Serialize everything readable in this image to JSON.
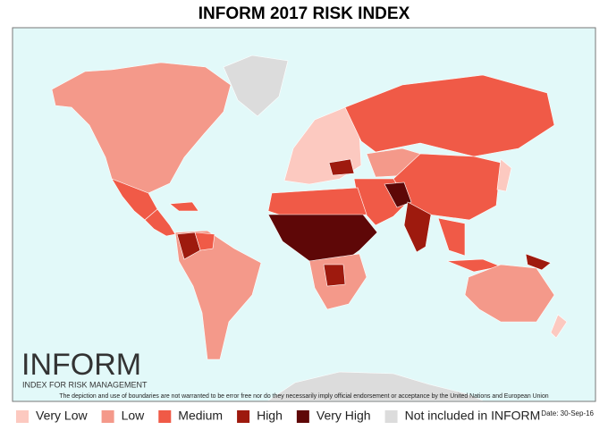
{
  "header": {
    "title": "INFORM 2017 RISK INDEX"
  },
  "logo": {
    "name": "INFORM",
    "subtitle": "INDEX FOR RISK MANAGEMENT"
  },
  "disclaimer": "The depiction and use of boundaries are not warranted to be error free nor do they necessarily imply official endorsement or acceptance by the United Nations and European Union",
  "date": "Date: 30-Sep-16",
  "legend": [
    {
      "label": "Very Low",
      "color": "#fcc9c0"
    },
    {
      "label": "Low",
      "color": "#f4998a"
    },
    {
      "label": "Medium",
      "color": "#f05a47"
    },
    {
      "label": "High",
      "color": "#9e1a0e"
    },
    {
      "label": "Very High",
      "color": "#5e0707"
    },
    {
      "label": "Not included in INFORM",
      "color": "#dcdcdc"
    }
  ]
}
